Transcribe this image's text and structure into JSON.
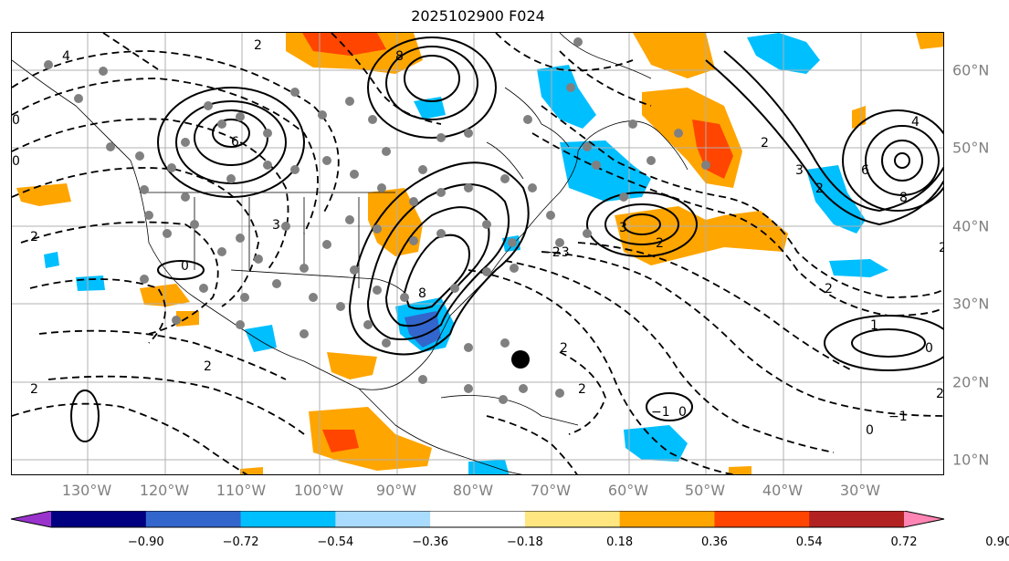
{
  "title": "2025102900 F024",
  "longitude_labels": [
    "130°W",
    "120°W",
    "110°W",
    "100°W",
    "90°W",
    "80°W",
    "70°W",
    "60°W",
    "50°W",
    "40°W",
    "30°W"
  ],
  "latitude_labels": [
    "60°N",
    "50°N",
    "40°N",
    "30°N",
    "20°N",
    "10°N"
  ],
  "colorbar": {
    "colors": [
      "#9933cc",
      "#000080",
      "#3366cc",
      "#00bfff",
      "#aadcff",
      "#ffffff",
      "#ffe680",
      "#ffa500",
      "#ff4500",
      "#b22222",
      "#ff85b4"
    ],
    "tick_labels": [
      "−0.90",
      "−0.72",
      "−0.54",
      "−0.36",
      "−0.18",
      "0.18",
      "0.36",
      "0.54",
      "0.72",
      "0.90"
    ]
  },
  "contour_labels": [
    "2",
    "6",
    "8",
    "4",
    "1",
    "3",
    "0",
    "−2",
    "−3",
    "−1"
  ],
  "colors": {
    "positive_anomaly": "#ffa500",
    "strong_positive": "#ff4500",
    "negative_anomaly": "#00bfff",
    "strong_negative": "#3366cc",
    "grid": "#b0b0b0",
    "station_dot": "#808080"
  }
}
